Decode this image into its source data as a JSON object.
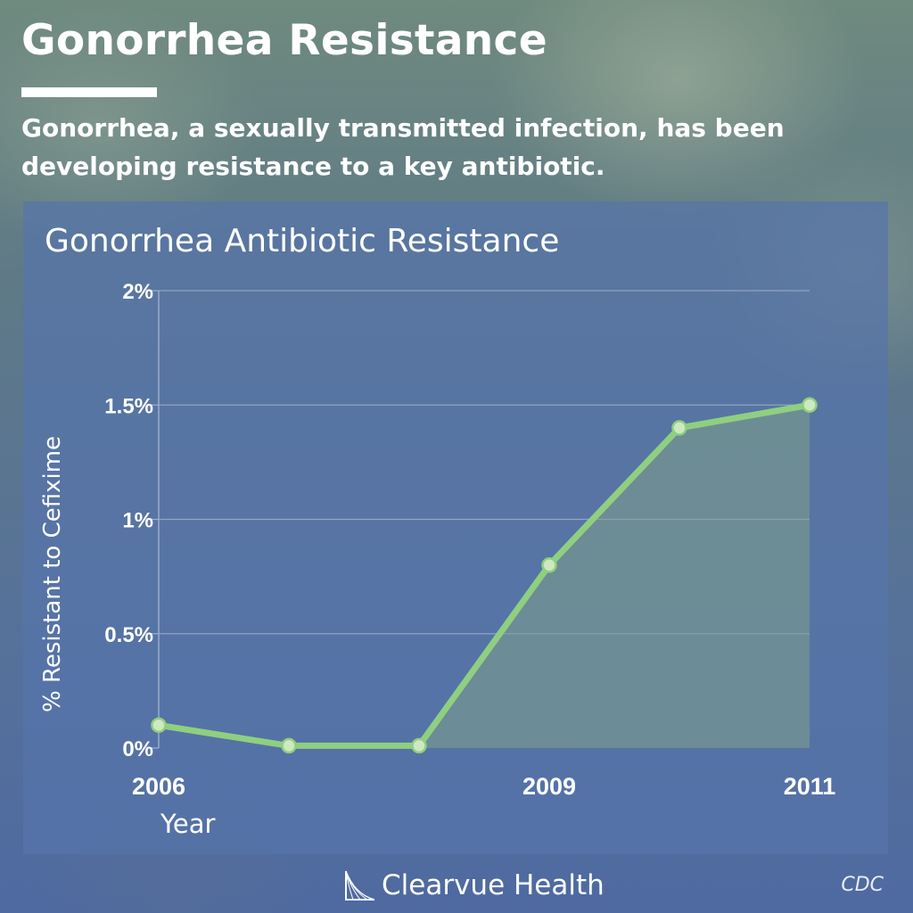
{
  "header": {
    "title": "Gonorrhea Resistance",
    "subtitle_lines": [
      "Gonorrhea, a sexually transmitted infection, has been",
      "developing resistance to a key antibiotic."
    ]
  },
  "footer": {
    "brand": "Clearvue Health",
    "source": "CDC"
  },
  "colors": {
    "line": "#8fcf80",
    "area": "#7fa08a",
    "grid": "#9fb0cc",
    "marker_fill": "#cde9bf",
    "text": "#ffffff"
  },
  "chart_data": {
    "type": "line",
    "title": "Gonorrhea Antibiotic Resistance",
    "xlabel": "Year",
    "ylabel": "% Resistant to Cefixime",
    "x": [
      2006,
      2007,
      2008,
      2009,
      2010,
      2011
    ],
    "x_tick_values": [
      2006,
      2009,
      2011
    ],
    "x_tick_labels": [
      "2006",
      "2009",
      "2011"
    ],
    "xlim": [
      2006,
      2011
    ],
    "ylim": [
      0,
      2
    ],
    "y_ticks": [
      0,
      0.5,
      1,
      1.5,
      2
    ],
    "y_tick_labels": [
      "0%",
      "0.5%",
      "1%",
      "1.5%",
      "2%"
    ],
    "series": [
      {
        "values": [
          0.1,
          0.01,
          0.01,
          0.8,
          1.4,
          1.5
        ]
      }
    ],
    "area_fill_from_x": 2008,
    "grid": true,
    "markers": true
  }
}
